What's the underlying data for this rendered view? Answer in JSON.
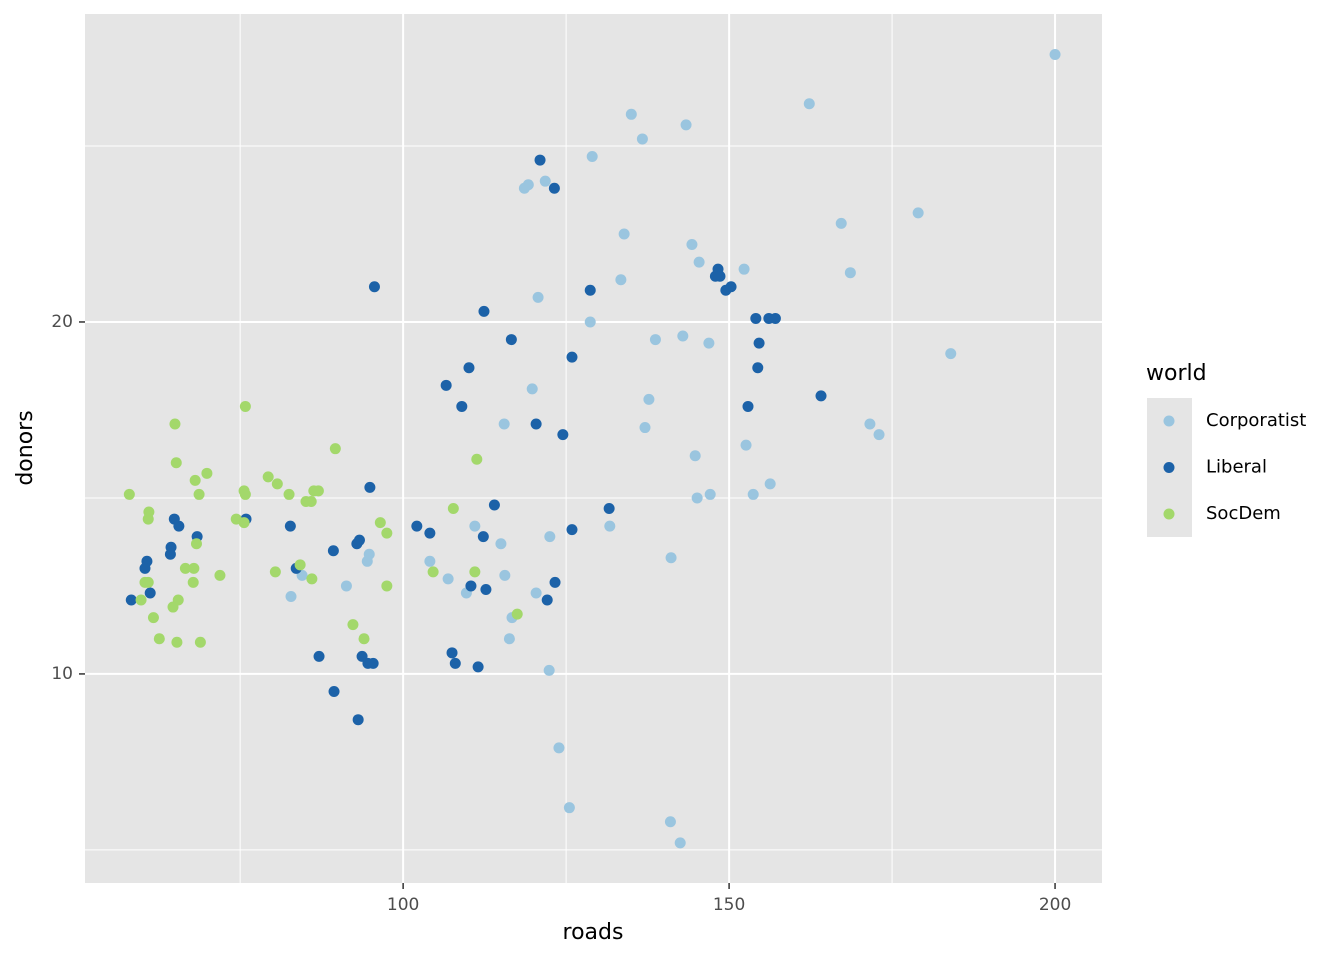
{
  "chart_data": {
    "type": "scatter",
    "x_label": "roads",
    "y_label": "donors",
    "legend_title": "world",
    "legend_position": "right",
    "xlim": [
      51.2,
      207.2
    ],
    "ylim": [
      4.06,
      28.75
    ],
    "xticks": [
      100,
      150,
      200
    ],
    "yticks": [
      10,
      20
    ],
    "xminor": [
      75,
      125,
      175
    ],
    "yminor": [
      5,
      15,
      25
    ],
    "grid": true,
    "series": [
      {
        "name": "Corporatist",
        "color": "#9ac5df",
        "x": [
          200.0,
          162.3,
          135.0,
          143.4,
          136.7,
          129.0,
          121.8,
          119.2,
          118.6,
          179.0,
          167.2,
          133.9,
          144.3,
          145.4,
          168.6,
          152.3,
          133.4,
          120.7,
          128.7,
          142.9,
          138.7,
          146.9,
          184.0,
          119.8,
          137.7,
          115.5,
          137.1,
          171.6,
          173.0,
          152.6,
          144.8,
          156.3,
          147.1,
          145.1,
          153.7,
          111.0,
          131.7,
          122.5,
          115.0,
          94.8,
          94.5,
          104.1,
          141.1,
          84.5,
          106.9,
          115.6,
          91.3,
          109.7,
          120.4,
          82.8,
          116.7,
          116.3,
          122.4,
          123.9,
          125.5,
          141.0,
          142.5
        ],
        "values": [
          27.6,
          26.2,
          25.9,
          25.6,
          25.2,
          24.7,
          24.0,
          23.9,
          23.8,
          23.1,
          22.8,
          22.5,
          22.2,
          21.7,
          21.4,
          21.5,
          21.2,
          20.7,
          20.0,
          19.6,
          19.5,
          19.4,
          19.1,
          18.1,
          17.8,
          17.1,
          17.0,
          17.1,
          16.8,
          16.5,
          16.2,
          15.4,
          15.1,
          15.0,
          15.1,
          14.2,
          14.2,
          13.9,
          13.7,
          13.4,
          13.2,
          13.2,
          13.3,
          12.8,
          12.7,
          12.8,
          12.5,
          12.3,
          12.3,
          12.2,
          11.6,
          11.0,
          10.1,
          7.9,
          6.2,
          5.8,
          5.2
        ]
      },
      {
        "name": "Liberal",
        "color": "#1c62a8",
        "x": [
          121.0,
          123.2,
          95.6,
          128.7,
          150.3,
          149.5,
          148.3,
          147.9,
          148.6,
          112.4,
          154.1,
          156.1,
          157.1,
          116.6,
          154.6,
          125.9,
          110.1,
          106.6,
          154.4,
          164.1,
          109.0,
          152.9,
          120.4,
          124.5,
          94.9,
          114.0,
          131.6,
          75.9,
          82.7,
          102.1,
          104.1,
          125.9,
          112.3,
          93.3,
          92.9,
          89.3,
          65.6,
          64.9,
          68.4,
          64.4,
          64.3,
          60.7,
          60.4,
          83.6,
          123.3,
          110.4,
          112.7,
          61.2,
          58.3,
          122.1,
          87.1,
          107.5,
          93.7,
          108.0,
          94.6,
          95.4,
          111.5,
          89.4,
          93.1
        ],
        "values": [
          24.6,
          23.8,
          21.0,
          20.9,
          21.0,
          20.9,
          21.5,
          21.3,
          21.3,
          20.3,
          20.1,
          20.1,
          20.1,
          19.5,
          19.4,
          19.0,
          18.7,
          18.2,
          18.7,
          17.9,
          17.6,
          17.6,
          17.1,
          16.8,
          15.3,
          14.8,
          14.7,
          14.4,
          14.2,
          14.2,
          14.0,
          14.1,
          13.9,
          13.8,
          13.7,
          13.5,
          14.2,
          14.4,
          13.9,
          13.6,
          13.4,
          13.2,
          13.0,
          13.0,
          12.6,
          12.5,
          12.4,
          12.3,
          12.1,
          12.1,
          10.5,
          10.6,
          10.5,
          10.3,
          10.3,
          10.3,
          10.2,
          9.5,
          8.7
        ]
      },
      {
        "name": "SocDem",
        "color": "#a3d86b",
        "x": [
          75.8,
          65.0,
          65.2,
          69.9,
          68.1,
          79.3,
          80.7,
          111.3,
          89.6,
          58.0,
          68.7,
          75.6,
          75.8,
          82.5,
          86.3,
          87.0,
          85.1,
          85.9,
          61.0,
          60.9,
          74.4,
          75.6,
          96.5,
          107.7,
          97.5,
          68.3,
          66.6,
          67.9,
          84.2,
          80.4,
          71.9,
          104.6,
          111.0,
          86.0,
          67.8,
          60.9,
          60.4,
          97.5,
          65.5,
          59.8,
          64.7,
          117.5,
          61.7,
          92.3,
          94.0,
          62.6,
          65.3,
          68.9
        ],
        "values": [
          17.6,
          17.1,
          16.0,
          15.7,
          15.5,
          15.6,
          15.4,
          16.1,
          16.4,
          15.1,
          15.1,
          15.2,
          15.1,
          15.1,
          15.2,
          15.2,
          14.9,
          14.9,
          14.6,
          14.4,
          14.4,
          14.3,
          14.3,
          14.7,
          14.0,
          13.7,
          13.0,
          13.0,
          13.1,
          12.9,
          12.8,
          12.9,
          12.9,
          12.7,
          12.6,
          12.6,
          12.6,
          12.5,
          12.1,
          12.1,
          11.9,
          11.7,
          11.6,
          11.4,
          11.0,
          11.0,
          10.9,
          10.9
        ]
      }
    ]
  }
}
